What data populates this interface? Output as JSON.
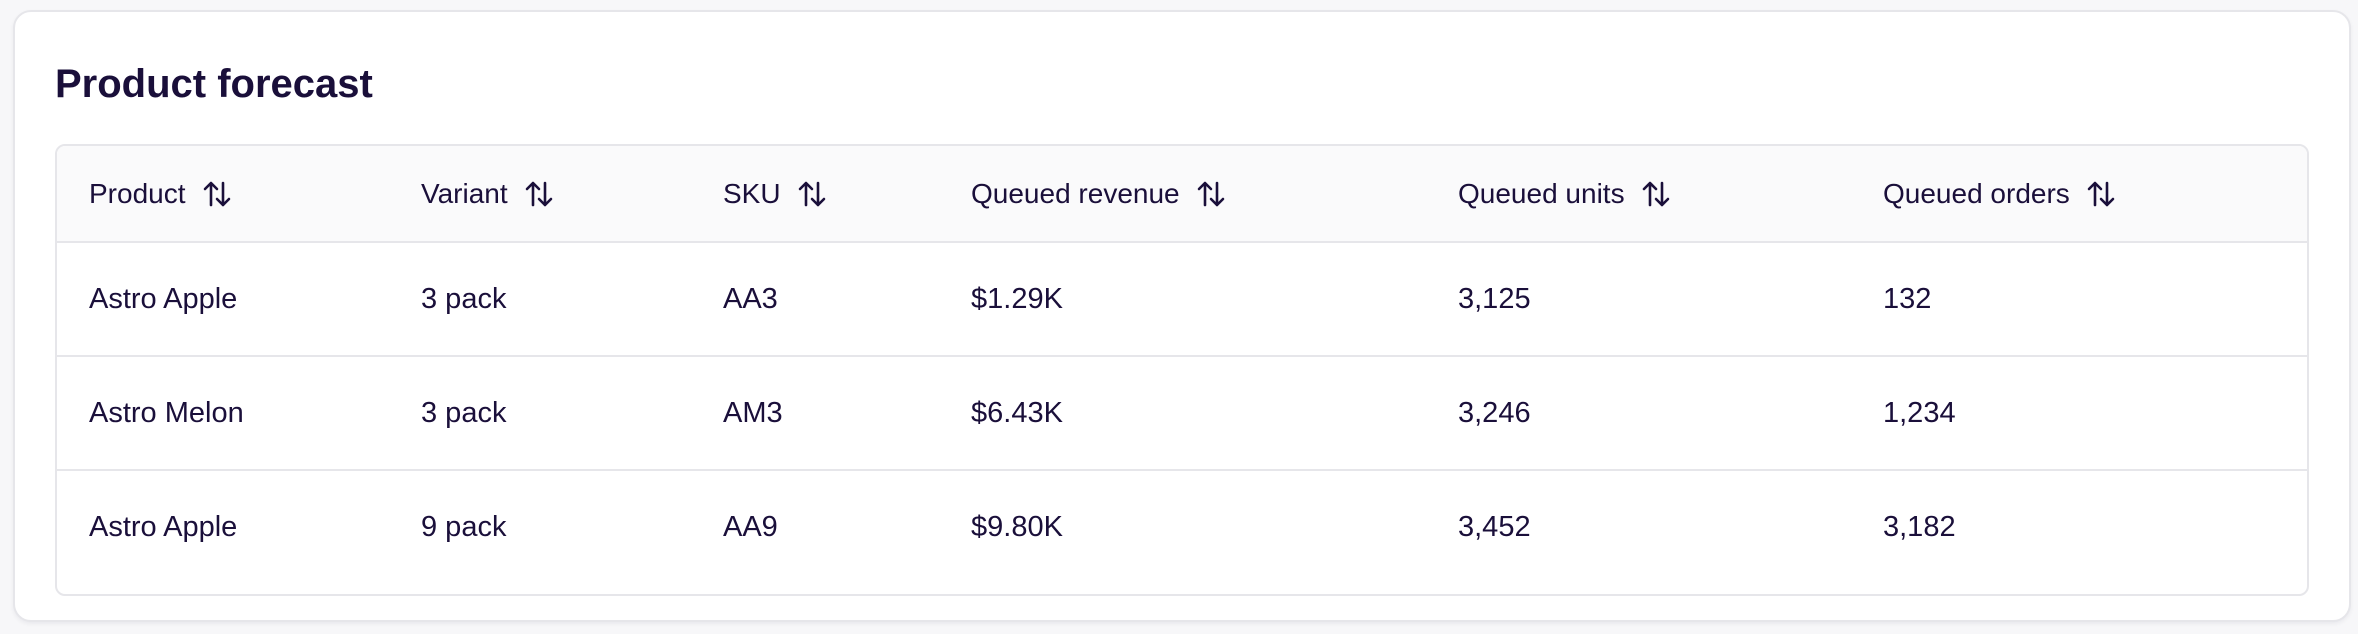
{
  "card": {
    "title": "Product forecast"
  },
  "table": {
    "columns": [
      {
        "label": "Product",
        "sort_icon": "sort-arrows-icon"
      },
      {
        "label": "Variant",
        "sort_icon": "sort-arrows-icon"
      },
      {
        "label": "SKU",
        "sort_icon": "sort-arrows-icon"
      },
      {
        "label": "Queued revenue",
        "sort_icon": "sort-arrows-icon"
      },
      {
        "label": "Queued units",
        "sort_icon": "sort-arrows-icon"
      },
      {
        "label": "Queued orders",
        "sort_icon": "sort-arrows-icon"
      }
    ],
    "rows": [
      [
        "Astro Apple",
        "3 pack",
        "AA3",
        "$1.29K",
        "3,125",
        "132"
      ],
      [
        "Astro Melon",
        "3 pack",
        "AM3",
        "$6.43K",
        "3,246",
        "1,234"
      ],
      [
        "Astro Apple",
        "9 pack",
        "AA9",
        "$9.80K",
        "3,452",
        "3,182"
      ]
    ]
  },
  "colors": {
    "text": "#1a0f3a",
    "border": "#e6e6ea",
    "header_bg": "#fafafb",
    "card_bg": "#ffffff"
  }
}
